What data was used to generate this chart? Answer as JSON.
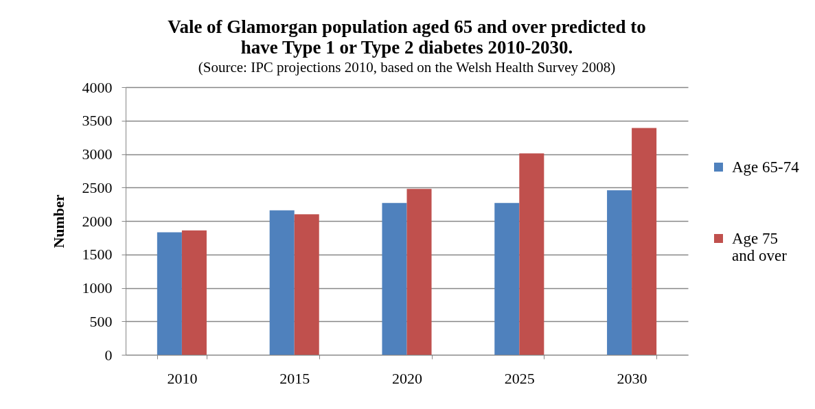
{
  "chart_data": {
    "type": "bar",
    "title": "Vale of Glamorgan population aged 65 and over predicted to have Type 1 or Type 2 diabetes 2010-2030.",
    "subtitle": "(Source: IPC projections 2010, based on the Welsh Health Survey 2008)",
    "ylabel": "Number",
    "categories": [
      "2010",
      "2015",
      "2020",
      "2025",
      "2030"
    ],
    "series": [
      {
        "name": "Age 65-74",
        "color": "#4f81bd",
        "values": [
          1830,
          2160,
          2270,
          2270,
          2460
        ]
      },
      {
        "name": "Age 75 and over",
        "color": "#c0504d",
        "values": [
          1860,
          2100,
          2480,
          3010,
          3390
        ]
      }
    ],
    "ylim": [
      0,
      4000
    ],
    "yticks": [
      0,
      500,
      1000,
      1500,
      2000,
      2500,
      3000,
      3500,
      4000
    ],
    "grid": "y",
    "legend": "right"
  }
}
